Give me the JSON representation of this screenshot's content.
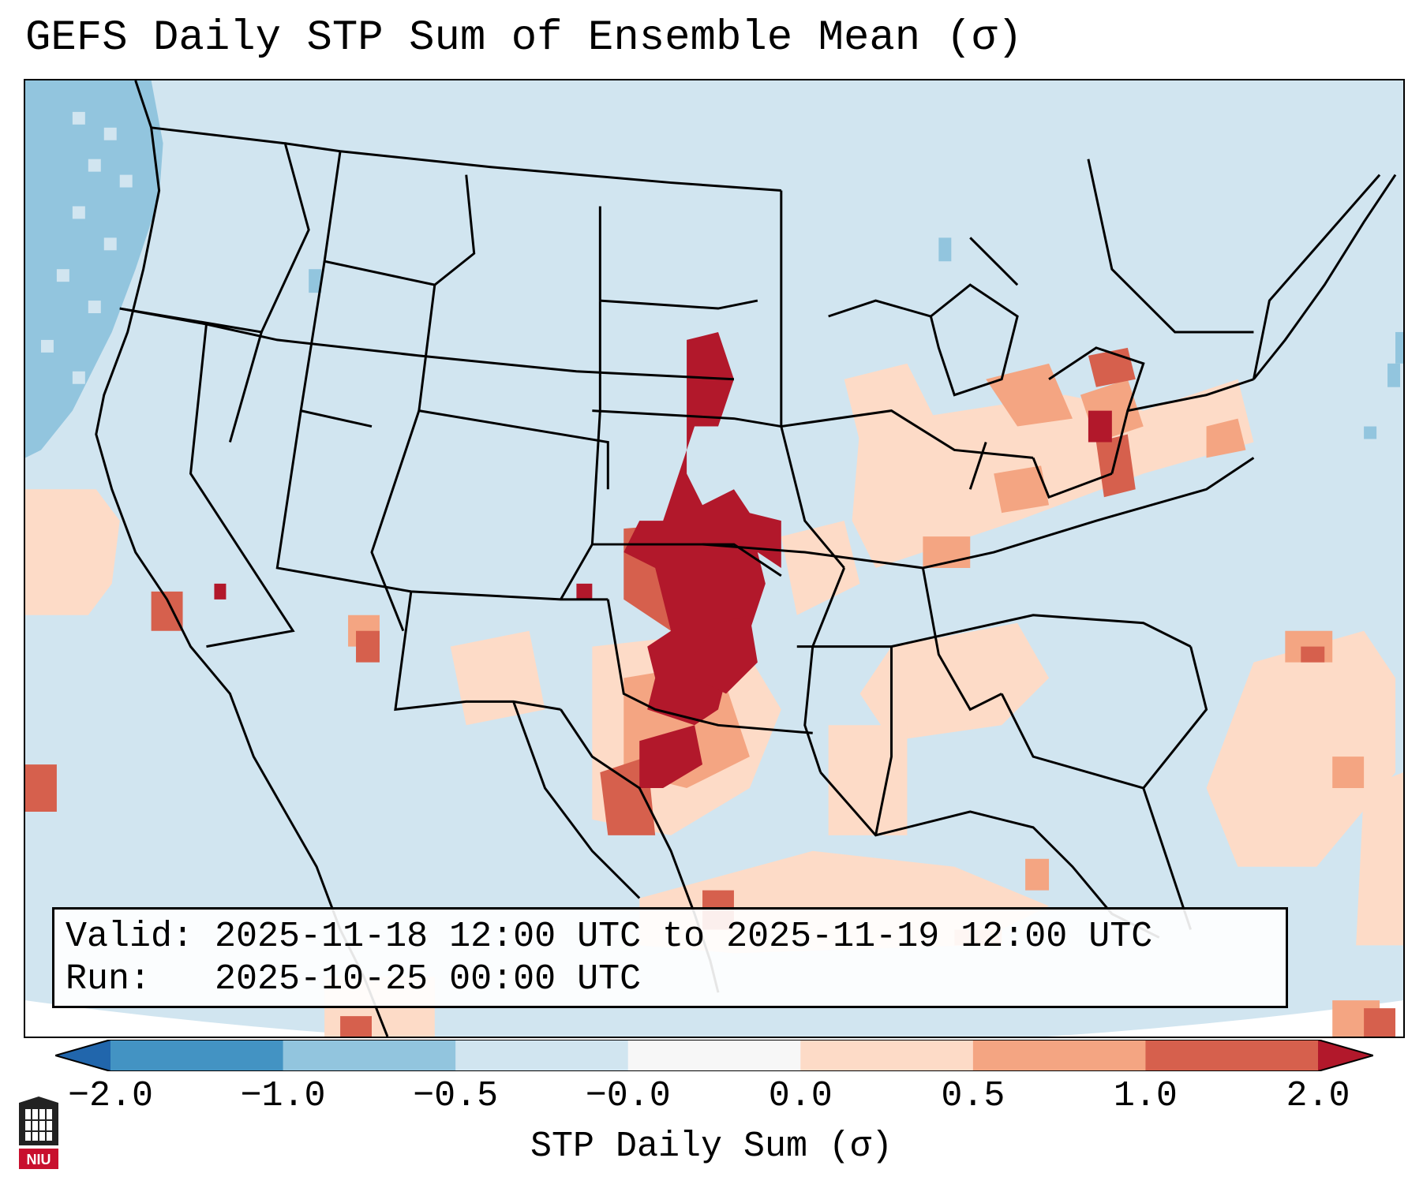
{
  "title": "GEFS Daily STP Sum of Ensemble Mean (σ)",
  "info": {
    "valid_label": "Valid:",
    "valid_value": "2025-11-18 12:00 UTC to 2025-11-19 12:00 UTC",
    "run_label": "Run:",
    "run_value": "2025-10-25 00:00 UTC"
  },
  "colorbar": {
    "label": "STP Daily Sum (σ)",
    "ticks": [
      "−2.0",
      "−1.0",
      "−0.5",
      "−0.0",
      "0.0",
      "0.5",
      "1.0",
      "2.0"
    ],
    "bins": [
      {
        "color": "#4393c3"
      },
      {
        "color": "#92c5de"
      },
      {
        "color": "#d1e5f0"
      },
      {
        "color": "#f7f7f7"
      },
      {
        "color": "#fddbc7"
      },
      {
        "color": "#f4a582"
      },
      {
        "color": "#d6604d"
      }
    ],
    "extend_low_color": "#2166ac",
    "extend_high_color": "#b2182b"
  },
  "colors": {
    "background_field": "#d1e5f0",
    "extreme_high": "#b2182b",
    "high": "#d6604d",
    "moderate": "#f4a582",
    "low": "#fddbc7",
    "blue_low": "#92c5de"
  },
  "logo": {
    "name": "university-shield-logo",
    "text": "NIU"
  }
}
